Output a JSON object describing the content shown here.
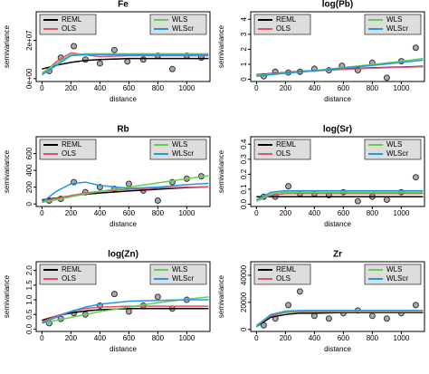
{
  "chart_data": [
    {
      "type": "scatter",
      "title": "Fe",
      "x_label": "distance",
      "y_label": "semivariance",
      "xlim": [
        -40,
        1160
      ],
      "xticks": [
        0,
        200,
        400,
        600,
        800,
        1000
      ],
      "ylim": [
        -1500000,
        35000000
      ],
      "yticks": [
        {
          "value": 0,
          "label": "0e+00"
        },
        {
          "value": 20000000,
          "label": "2e+07"
        }
      ],
      "points": {
        "x": [
          50,
          130,
          220,
          300,
          400,
          500,
          590,
          700,
          800,
          900,
          1000,
          1100
        ],
        "y": [
          4000000,
          11000000,
          17000000,
          10000000,
          8000000,
          15000000,
          9000000,
          10000000,
          12000000,
          5000000,
          12000000,
          11000000
        ]
      },
      "series": [
        {
          "name": "REML",
          "color": "#000000",
          "x": [
            0,
            100,
            200,
            300,
            400,
            600,
            800,
            1000,
            1150
          ],
          "values": [
            5000000,
            7000000,
            8500000,
            9500000,
            10000000,
            10500000,
            10500000,
            10500000,
            10500000
          ]
        },
        {
          "name": "OLS",
          "color": "#df536b",
          "x": [
            0,
            100,
            200,
            300,
            400,
            600,
            800,
            1000,
            1150
          ],
          "values": [
            2000000,
            9000000,
            13500000,
            12500000,
            11500000,
            12000000,
            12000000,
            12000000,
            12000000
          ]
        },
        {
          "name": "WLS",
          "color": "#61d04f",
          "x": [
            0,
            100,
            200,
            300,
            400,
            600,
            800,
            1000,
            1150
          ],
          "values": [
            3000000,
            8000000,
            12500000,
            13000000,
            13000000,
            13000000,
            13000000,
            13000000,
            13000000
          ]
        },
        {
          "name": "WLScr",
          "color": "#2297e6",
          "x": [
            0,
            100,
            200,
            300,
            400,
            600,
            800,
            1000,
            1150
          ],
          "values": [
            2000000,
            7000000,
            12000000,
            12500000,
            12500000,
            12500000,
            12500000,
            12500000,
            12500000
          ]
        }
      ]
    },
    {
      "type": "scatter",
      "title": "log(Pb)",
      "x_label": "distance",
      "y_label": "semivariance",
      "xlim": [
        -40,
        1160
      ],
      "xticks": [
        0,
        200,
        400,
        600,
        800,
        1000
      ],
      "ylim": [
        -0.15,
        4.5
      ],
      "yticks": [
        0,
        1,
        2,
        3,
        4
      ],
      "points": {
        "x": [
          50,
          130,
          220,
          300,
          400,
          500,
          590,
          700,
          800,
          900,
          1000,
          1100
        ],
        "y": [
          0.2,
          0.5,
          0.45,
          0.5,
          0.7,
          0.6,
          0.9,
          0.6,
          1.1,
          0.1,
          1.2,
          2.1
        ]
      },
      "series": [
        {
          "name": "REML",
          "color": "#000000",
          "x": [
            0,
            100,
            200,
            300,
            400,
            600,
            800,
            1000,
            1150
          ],
          "values": [
            0.3,
            0.38,
            0.45,
            0.52,
            0.58,
            0.68,
            0.76,
            0.82,
            0.86
          ]
        },
        {
          "name": "OLS",
          "color": "#df536b",
          "x": [
            0,
            100,
            200,
            300,
            400,
            600,
            800,
            1000,
            1150
          ],
          "values": [
            0.28,
            0.36,
            0.44,
            0.5,
            0.56,
            0.66,
            0.74,
            0.8,
            0.84
          ]
        },
        {
          "name": "WLS",
          "color": "#61d04f",
          "x": [
            0,
            100,
            200,
            300,
            400,
            600,
            800,
            1000,
            1150
          ],
          "values": [
            0.25,
            0.33,
            0.42,
            0.5,
            0.58,
            0.78,
            0.98,
            1.2,
            1.38
          ]
        },
        {
          "name": "WLScr",
          "color": "#2297e6",
          "x": [
            0,
            100,
            200,
            300,
            400,
            600,
            800,
            1000,
            1150
          ],
          "values": [
            0.2,
            0.3,
            0.4,
            0.48,
            0.56,
            0.74,
            0.92,
            1.12,
            1.28
          ]
        }
      ]
    },
    {
      "type": "scatter",
      "title": "Rb",
      "x_label": "distance",
      "y_label": "semivariance",
      "xlim": [
        -40,
        1160
      ],
      "xticks": [
        0,
        200,
        400,
        600,
        800,
        1000
      ],
      "ylim": [
        -30,
        800
      ],
      "yticks": [
        0,
        200,
        400,
        600
      ],
      "points": {
        "x": [
          50,
          130,
          220,
          300,
          400,
          500,
          600,
          700,
          800,
          900,
          1000,
          1100
        ],
        "y": [
          40,
          60,
          260,
          140,
          200,
          180,
          240,
          160,
          40,
          260,
          300,
          330
        ]
      },
      "series": [
        {
          "name": "REML",
          "color": "#000000",
          "x": [
            0,
            100,
            200,
            300,
            400,
            600,
            800,
            1000,
            1150
          ],
          "values": [
            50,
            70,
            95,
            115,
            130,
            155,
            175,
            195,
            205
          ]
        },
        {
          "name": "OLS",
          "color": "#df536b",
          "x": [
            0,
            100,
            200,
            300,
            400,
            600,
            800,
            1000,
            1150
          ],
          "values": [
            40,
            65,
            100,
            130,
            150,
            175,
            190,
            200,
            205
          ]
        },
        {
          "name": "WLS",
          "color": "#61d04f",
          "x": [
            0,
            100,
            200,
            300,
            400,
            600,
            800,
            1000,
            1150
          ],
          "values": [
            20,
            50,
            85,
            120,
            150,
            200,
            250,
            300,
            335
          ]
        },
        {
          "name": "WLScr",
          "color": "#2297e6",
          "x": [
            0,
            100,
            200,
            300,
            400,
            600,
            800,
            1000,
            1150
          ],
          "values": [
            20,
            150,
            240,
            260,
            220,
            185,
            200,
            230,
            245
          ]
        }
      ]
    },
    {
      "type": "scatter",
      "title": "log(Sr)",
      "x_label": "distance",
      "y_label": "semivariance",
      "xlim": [
        -40,
        1160
      ],
      "xticks": [
        0,
        200,
        400,
        600,
        800,
        1000
      ],
      "ylim": [
        -0.015,
        0.45
      ],
      "yticks": [
        {
          "value": 0,
          "label": "0.0"
        },
        {
          "value": 0.1,
          "label": "0.1"
        },
        {
          "value": 0.2,
          "label": "0.2"
        },
        {
          "value": 0.3,
          "label": "0.3"
        },
        {
          "value": 0.4,
          "label": "0.4"
        }
      ],
      "points": {
        "x": [
          50,
          130,
          220,
          300,
          400,
          500,
          600,
          700,
          800,
          900,
          1000,
          1100
        ],
        "y": [
          0.05,
          0.05,
          0.12,
          0.07,
          0.07,
          0.06,
          0.08,
          0.02,
          0.05,
          0.03,
          0.08,
          0.18
        ]
      },
      "series": [
        {
          "name": "REML",
          "color": "#000000",
          "x": [
            0,
            100,
            200,
            300,
            400,
            600,
            800,
            1000,
            1150
          ],
          "values": [
            0.05,
            0.05,
            0.05,
            0.05,
            0.05,
            0.05,
            0.05,
            0.05,
            0.05
          ]
        },
        {
          "name": "OLS",
          "color": "#df536b",
          "x": [
            0,
            100,
            200,
            300,
            400,
            600,
            800,
            1000,
            1150
          ],
          "values": [
            0.02,
            0.06,
            0.07,
            0.07,
            0.07,
            0.07,
            0.07,
            0.07,
            0.07
          ]
        },
        {
          "name": "WLS",
          "color": "#61d04f",
          "x": [
            0,
            100,
            200,
            300,
            400,
            600,
            800,
            1000,
            1150
          ],
          "values": [
            0.02,
            0.07,
            0.08,
            0.08,
            0.08,
            0.08,
            0.08,
            0.08,
            0.08
          ]
        },
        {
          "name": "WLScr",
          "color": "#2297e6",
          "x": [
            0,
            100,
            200,
            300,
            400,
            600,
            800,
            1000,
            1150
          ],
          "values": [
            0.03,
            0.08,
            0.09,
            0.09,
            0.09,
            0.09,
            0.09,
            0.09,
            0.09
          ]
        }
      ]
    },
    {
      "type": "scatter",
      "title": "log(Zn)",
      "x_label": "distance",
      "y_label": "semivariance",
      "xlim": [
        -40,
        1160
      ],
      "xticks": [
        0,
        200,
        400,
        600,
        800,
        1000
      ],
      "ylim": [
        -0.08,
        2.3
      ],
      "yticks": [
        {
          "value": 0,
          "label": "0.0"
        },
        {
          "value": 0.5,
          "label": "0.5"
        },
        {
          "value": 1,
          "label": "1.0"
        },
        {
          "value": 1.5,
          "label": "1.5"
        },
        {
          "value": 2,
          "label": "2.0"
        }
      ],
      "points": {
        "x": [
          50,
          130,
          220,
          300,
          400,
          500,
          600,
          700,
          800,
          900,
          1000,
          1100
        ],
        "y": [
          0.2,
          0.35,
          0.55,
          0.5,
          0.8,
          1.2,
          0.6,
          0.8,
          1.1,
          0.7,
          1.0,
          1.9
        ]
      },
      "series": [
        {
          "name": "REML",
          "color": "#000000",
          "x": [
            0,
            100,
            200,
            300,
            400,
            600,
            800,
            1000,
            1150
          ],
          "values": [
            0.3,
            0.45,
            0.55,
            0.62,
            0.66,
            0.7,
            0.7,
            0.7,
            0.7
          ]
        },
        {
          "name": "OLS",
          "color": "#df536b",
          "x": [
            0,
            100,
            200,
            300,
            400,
            600,
            800,
            1000,
            1150
          ],
          "values": [
            0.25,
            0.45,
            0.6,
            0.7,
            0.75,
            0.78,
            0.78,
            0.78,
            0.78
          ]
        },
        {
          "name": "WLS",
          "color": "#61d04f",
          "x": [
            0,
            100,
            200,
            300,
            400,
            600,
            800,
            1000,
            1150
          ],
          "values": [
            0.2,
            0.3,
            0.4,
            0.5,
            0.6,
            0.75,
            0.9,
            1.02,
            1.1
          ]
        },
        {
          "name": "WLScr",
          "color": "#2297e6",
          "x": [
            0,
            100,
            200,
            300,
            400,
            600,
            800,
            1000,
            1150
          ],
          "values": [
            0.2,
            0.4,
            0.6,
            0.75,
            0.85,
            0.95,
            0.98,
            1.0,
            1.0
          ]
        }
      ]
    },
    {
      "type": "scatter",
      "title": "Zr",
      "x_label": "distance",
      "y_label": "semivariance",
      "xlim": [
        -40,
        1160
      ],
      "xticks": [
        0,
        200,
        400,
        600,
        800,
        1000
      ],
      "ylim": [
        -1500,
        50000
      ],
      "yticks": [
        0,
        20000,
        40000
      ],
      "points": {
        "x": [
          50,
          130,
          220,
          300,
          400,
          500,
          600,
          700,
          800,
          900,
          1000,
          1100
        ],
        "y": [
          3000,
          8000,
          18000,
          28000,
          10000,
          8000,
          12000,
          14000,
          10000,
          8000,
          12000,
          18000
        ]
      },
      "series": [
        {
          "name": "REML",
          "color": "#000000",
          "x": [
            0,
            100,
            200,
            300,
            400,
            600,
            800,
            1000,
            1150
          ],
          "values": [
            2000,
            9000,
            11000,
            12000,
            12000,
            12500,
            12500,
            12500,
            12500
          ]
        },
        {
          "name": "OLS",
          "color": "#df536b",
          "x": [
            0,
            100,
            200,
            300,
            400,
            600,
            800,
            1000,
            1150
          ],
          "values": [
            3000,
            10000,
            12500,
            13000,
            13000,
            13000,
            13000,
            13000,
            13000
          ]
        },
        {
          "name": "WLS",
          "color": "#61d04f",
          "x": [
            0,
            100,
            200,
            300,
            400,
            600,
            800,
            1000,
            1150
          ],
          "values": [
            3000,
            11000,
            13000,
            13500,
            13500,
            13500,
            13500,
            13500,
            13500
          ]
        },
        {
          "name": "WLScr",
          "color": "#2297e6",
          "x": [
            0,
            100,
            200,
            300,
            400,
            600,
            800,
            1000,
            1150
          ],
          "values": [
            2000,
            11000,
            13500,
            14000,
            14000,
            14000,
            14000,
            14000,
            14000
          ]
        }
      ]
    }
  ]
}
